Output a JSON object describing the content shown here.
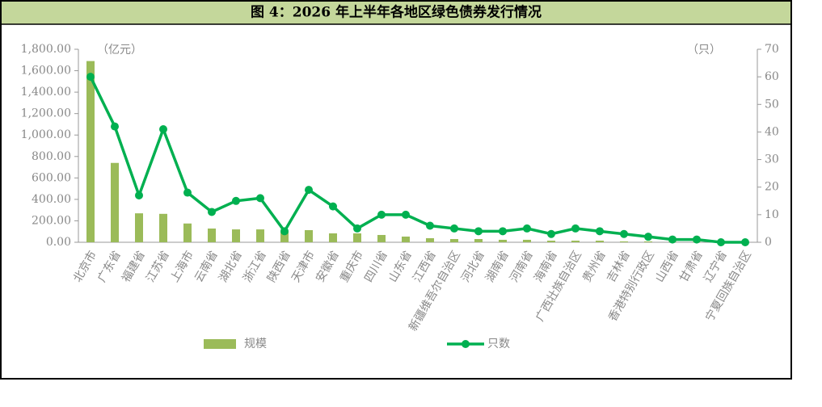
{
  "chart_data": {
    "type": "bar-line",
    "title": "图 4：2026 年上半年各地区绿色债券发行情况",
    "y_unit": "（亿元）",
    "y2_unit": "（只）",
    "categories": [
      "北京市",
      "广东省",
      "福建省",
      "江苏省",
      "上海市",
      "云南省",
      "湖北省",
      "浙江省",
      "陕西省",
      "天津市",
      "安徽省",
      "重庆市",
      "四川省",
      "山东省",
      "江西省",
      "新疆维吾尔自治区",
      "河北省",
      "湖南省",
      "河南省",
      "海南省",
      "广西壮族自治区",
      "贵州省",
      "吉林省",
      "香港特别行政区",
      "山西省",
      "甘肃省",
      "辽宁省",
      "宁夏回族自治区"
    ],
    "series": [
      {
        "name": "规模",
        "type": "bar",
        "color": "#9bbb59",
        "values": [
          1690,
          740,
          270,
          265,
          175,
          128,
          120,
          120,
          100,
          113,
          83,
          83,
          68,
          53,
          38,
          30,
          30,
          23,
          23,
          15,
          15,
          15,
          8,
          8,
          5,
          5,
          3,
          2
        ]
      },
      {
        "name": "只数",
        "type": "line",
        "axis": "y2",
        "color": "#00b050",
        "values": [
          60,
          42,
          17,
          41,
          18,
          11,
          15,
          16,
          4,
          19,
          13,
          5,
          10,
          10,
          6,
          5,
          4,
          4,
          5,
          3,
          5,
          4,
          3,
          2,
          1,
          1,
          0,
          0
        ]
      }
    ],
    "ylim": [
      0,
      1800
    ],
    "yticks": [
      {
        "value": 0,
        "label": "0.00"
      },
      {
        "value": 200,
        "label": "200.00"
      },
      {
        "value": 400,
        "label": "400.00"
      },
      {
        "value": 600,
        "label": "600.00"
      },
      {
        "value": 800,
        "label": "800.00"
      },
      {
        "value": 1000,
        "label": "1,000.00"
      },
      {
        "value": 1200,
        "label": "1,200.00"
      },
      {
        "value": 1400,
        "label": "1,400.00"
      },
      {
        "value": 1600,
        "label": "1,600.00"
      },
      {
        "value": 1800,
        "label": "1,800.00"
      }
    ],
    "y2lim": [
      0,
      70
    ],
    "y2ticks": [
      0,
      10,
      20,
      30,
      40,
      50,
      60,
      70
    ],
    "legend": "bottom"
  }
}
